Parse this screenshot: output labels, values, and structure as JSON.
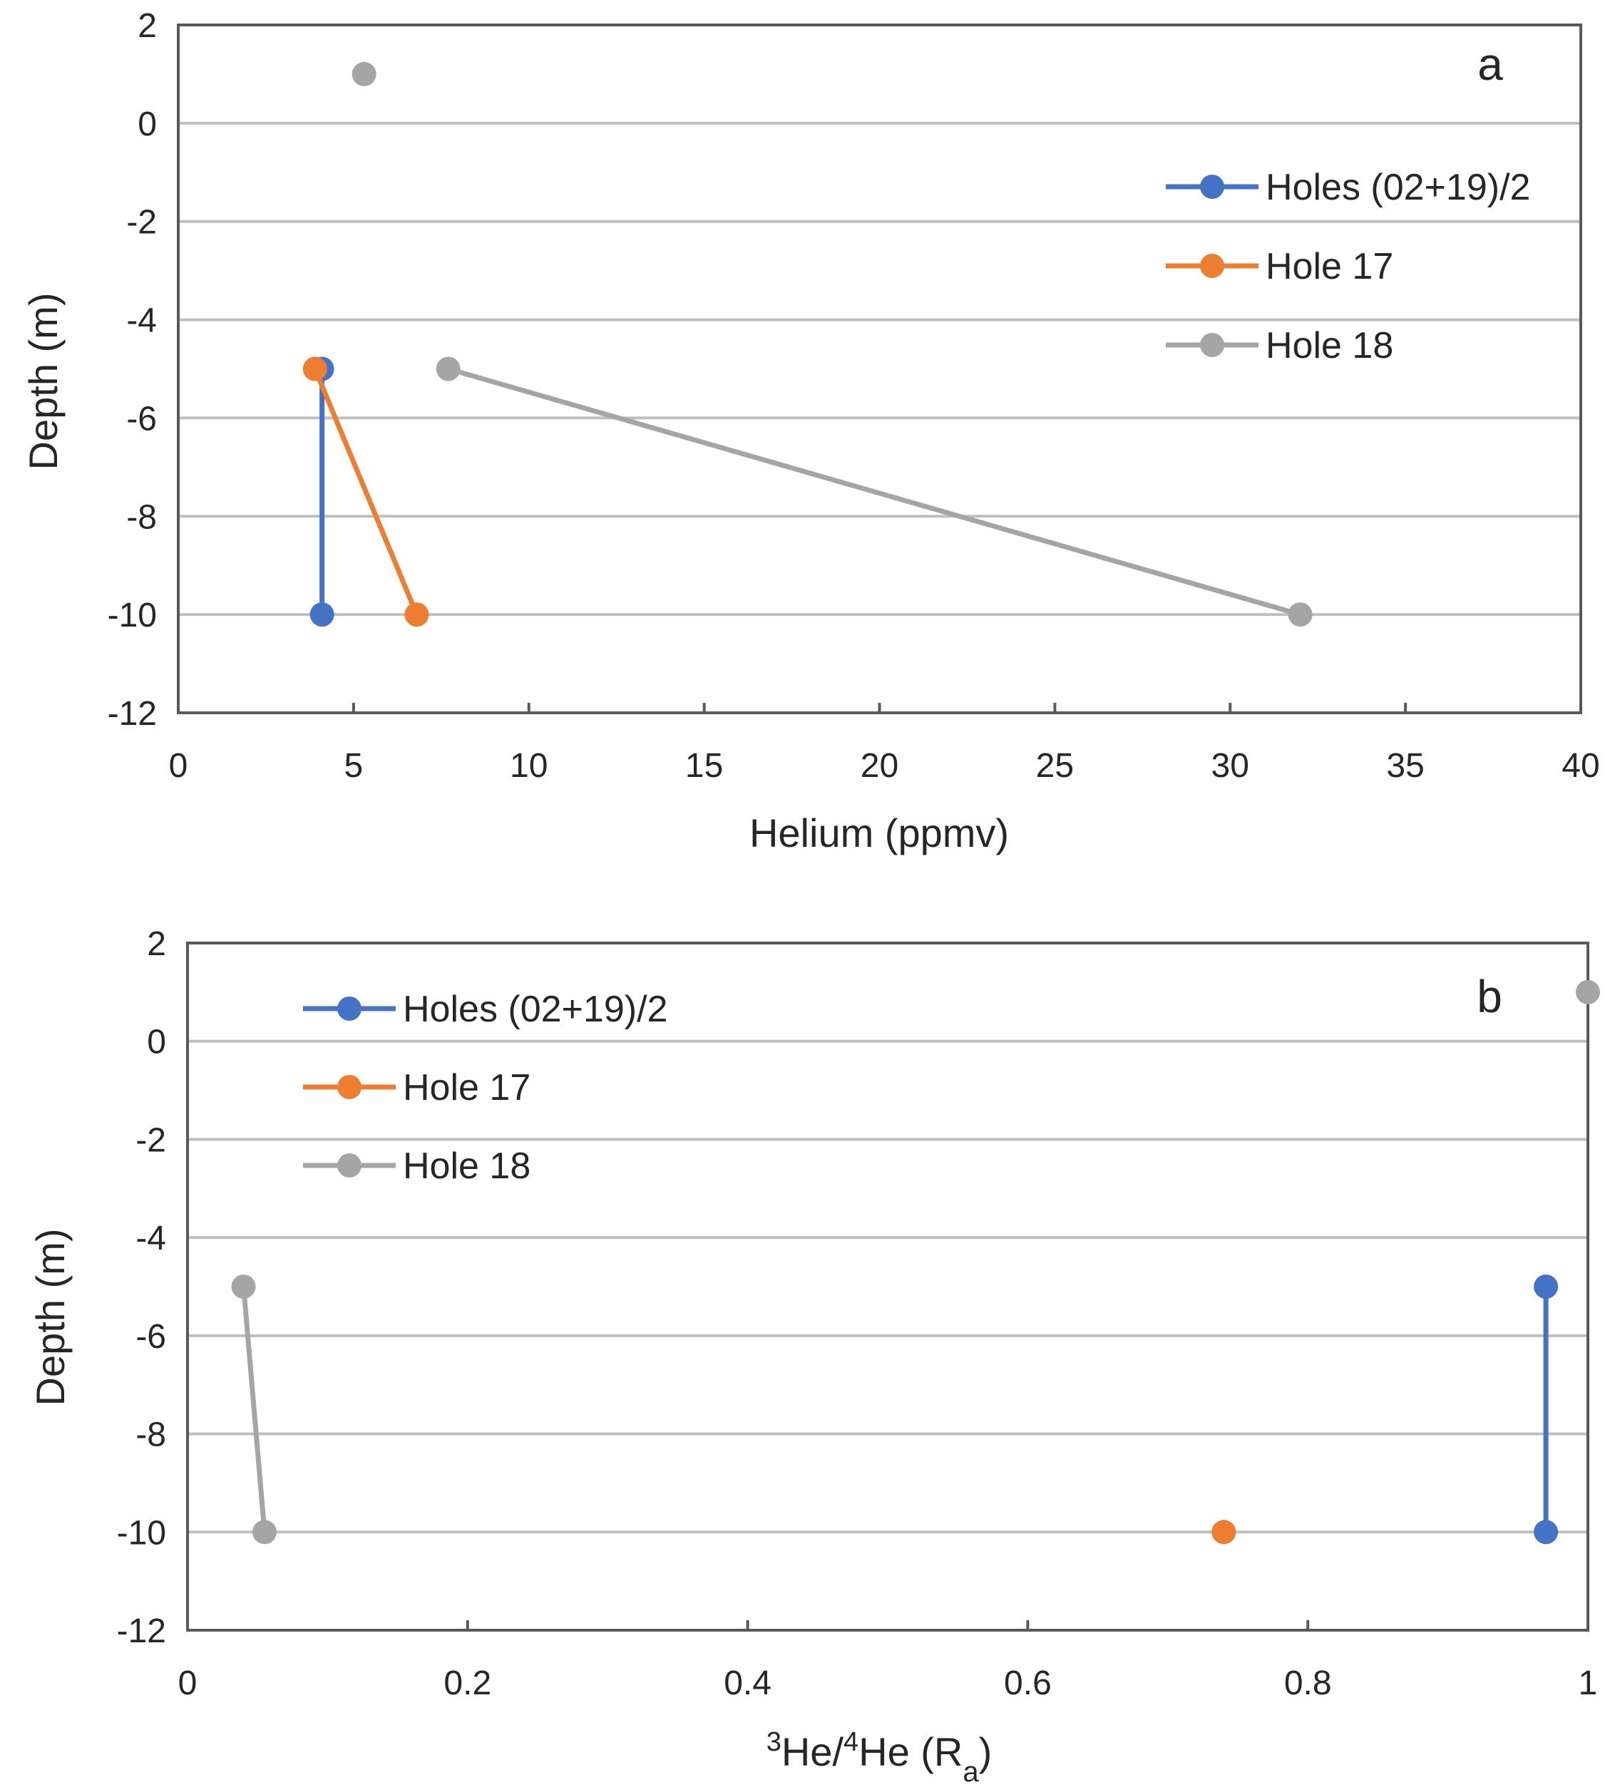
{
  "chart_data": [
    {
      "type": "line",
      "panel_label": "a",
      "xlabel": "Helium (ppmv)",
      "ylabel": "Depth (m)",
      "xlim": [
        0,
        40
      ],
      "ylim": [
        -12,
        2
      ],
      "x_ticks": [
        0,
        5,
        10,
        15,
        20,
        25,
        30,
        35,
        40
      ],
      "y_ticks": [
        2,
        0,
        -2,
        -4,
        -6,
        -8,
        -10,
        -12
      ],
      "grid": "horizontal",
      "legend_position": "top-right",
      "series": [
        {
          "name": "Holes (02+19)/2",
          "color": "#4472C4",
          "points": [
            [
              4.1,
              -5
            ],
            [
              4.1,
              -10
            ]
          ]
        },
        {
          "name": "Hole 17",
          "color": "#ED7D31",
          "points": [
            [
              3.9,
              -5
            ],
            [
              6.8,
              -10
            ]
          ]
        },
        {
          "name": "Hole 18",
          "color": "#A5A5A5",
          "points": [
            [
              5.3,
              1
            ],
            null,
            [
              7.7,
              -5
            ],
            [
              32.0,
              -10
            ]
          ]
        }
      ]
    },
    {
      "type": "line",
      "panel_label": "b",
      "xlabel": {
        "pre": "",
        "sup1": "3",
        "mid": "He/",
        "sup2": "4",
        "post": "He (R",
        "sub": "a",
        "end": ")"
      },
      "ylabel": "Depth (m)",
      "xlim": [
        0,
        1
      ],
      "ylim": [
        -12,
        2
      ],
      "x_ticks": [
        "0",
        "0.2",
        "0.4",
        "0.6",
        "0.8",
        "1"
      ],
      "x_tick_values": [
        0,
        0.2,
        0.4,
        0.6,
        0.8,
        1
      ],
      "y_ticks": [
        2,
        0,
        -2,
        -4,
        -6,
        -8,
        -10,
        -12
      ],
      "grid": "horizontal",
      "legend_position": "top-left",
      "series": [
        {
          "name": "Holes (02+19)/2",
          "color": "#4472C4",
          "points": [
            [
              0.97,
              -5
            ],
            [
              0.97,
              -10
            ]
          ]
        },
        {
          "name": "Hole 17",
          "color": "#ED7D31",
          "points": [
            [
              0.74,
              -10
            ]
          ]
        },
        {
          "name": "Hole 18",
          "color": "#A5A5A5",
          "points": [
            [
              1.0,
              1
            ],
            null,
            [
              0.04,
              -5
            ],
            [
              0.055,
              -10
            ]
          ]
        }
      ]
    }
  ]
}
